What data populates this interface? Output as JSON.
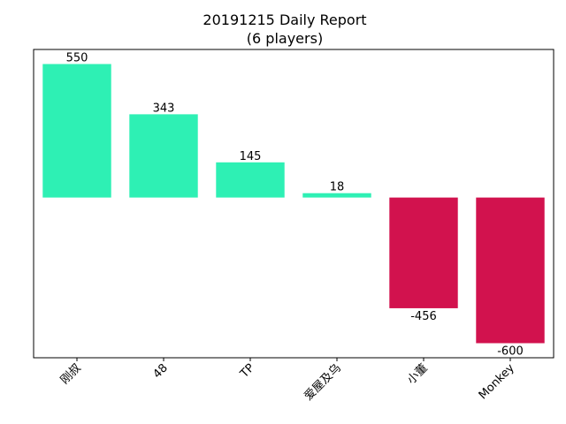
{
  "chart_data": {
    "type": "bar",
    "title": "20191215 Daily Report",
    "subtitle": "(6 players)",
    "categories": [
      "刚叔",
      "48",
      "TP",
      "爱屋及乌",
      "小董",
      "Monkey"
    ],
    "values": [
      550,
      343,
      145,
      18,
      -456,
      -600
    ],
    "positive_color": "#2ef0b4",
    "negative_color": "#d2124e",
    "ylim": [
      -660,
      610
    ],
    "grid": false,
    "legend": "none",
    "xlabel": "",
    "ylabel": ""
  }
}
